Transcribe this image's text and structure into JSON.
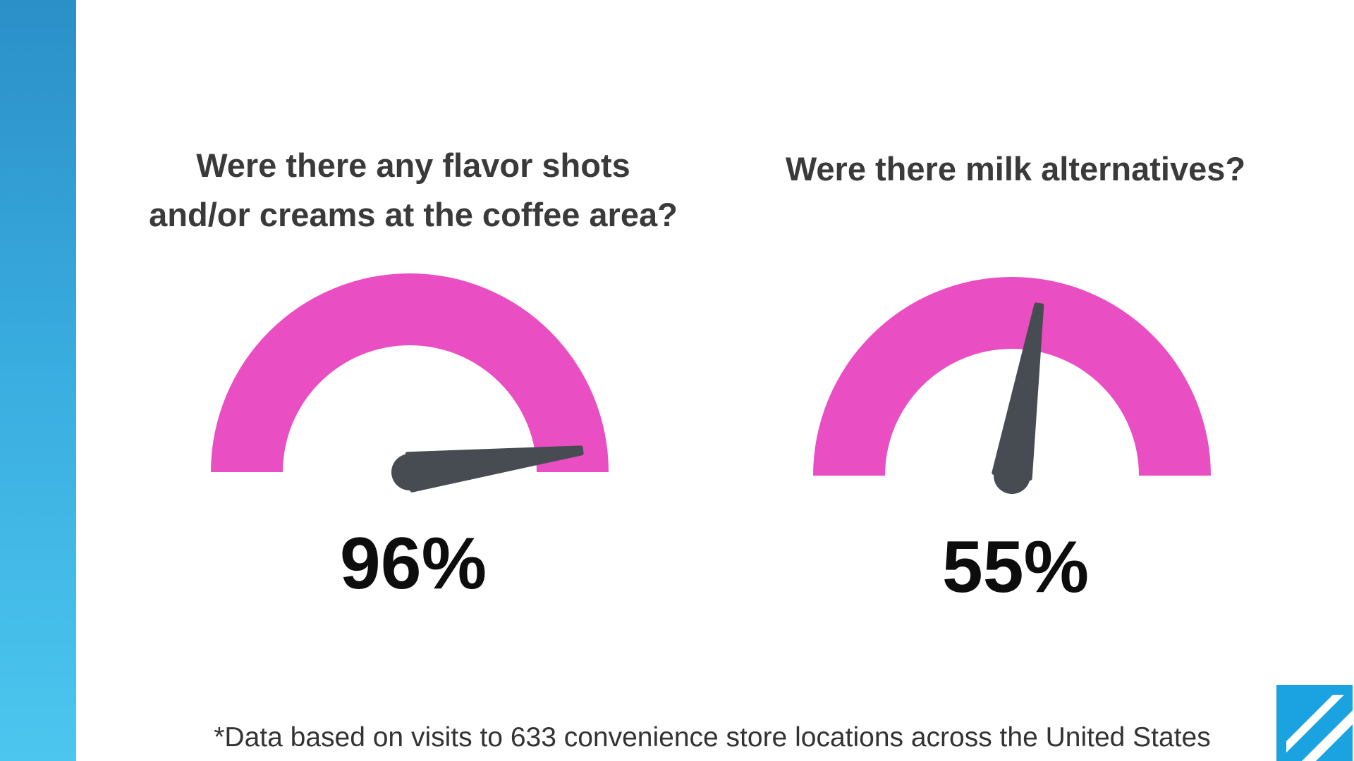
{
  "colors": {
    "gauge_arc": "#e94ec2",
    "needle": "#474c53",
    "accent_band": "#3aaee0",
    "logo": "#1aa3e0"
  },
  "chart_data": [
    {
      "type": "gauge",
      "title": "Were there any flavor shots\nand/or creams at the coffee area?",
      "value": 96,
      "label": "96%",
      "range": [
        0,
        100
      ]
    },
    {
      "type": "gauge",
      "title": "Were there milk alternatives?",
      "value": 55,
      "label": "55%",
      "range": [
        0,
        100
      ]
    }
  ],
  "footnote": "*Data based on visits to 633 convenience store locations across the United States",
  "logo_icon": "diagonal-stripes-logo-icon"
}
